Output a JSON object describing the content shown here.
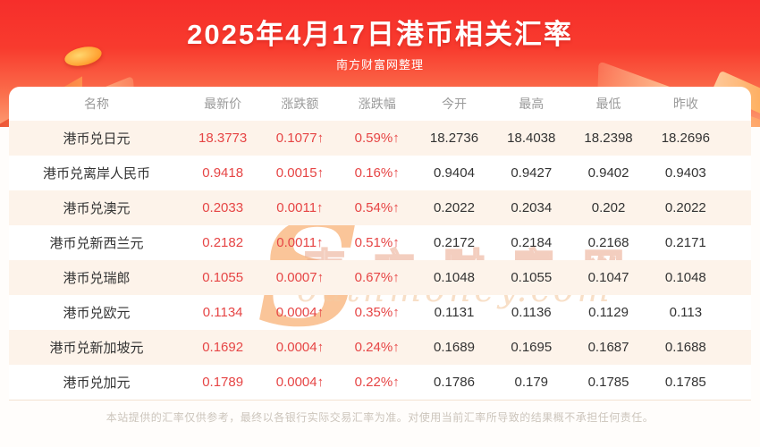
{
  "header": {
    "title": "2025年4月17日港币相关汇率",
    "subtitle": "南方财富网整理"
  },
  "watermark": {
    "initial": "S",
    "cn": "南方财富网",
    "en": "outhmoney.com"
  },
  "table": {
    "type": "table",
    "columns": [
      "名称",
      "最新价",
      "涨跌额",
      "涨跌幅",
      "今开",
      "最高",
      "最低",
      "昨收"
    ],
    "rows": [
      {
        "name": "港币兑日元",
        "latest": "18.3773",
        "change": "0.1077↑",
        "change_pct": "0.59%↑",
        "open": "18.2736",
        "high": "18.4038",
        "low": "18.2398",
        "prev_close": "18.2696"
      },
      {
        "name": "港币兑离岸人民币",
        "latest": "0.9418",
        "change": "0.0015↑",
        "change_pct": "0.16%↑",
        "open": "0.9404",
        "high": "0.9427",
        "low": "0.9402",
        "prev_close": "0.9403"
      },
      {
        "name": "港币兑澳元",
        "latest": "0.2033",
        "change": "0.0011↑",
        "change_pct": "0.54%↑",
        "open": "0.2022",
        "high": "0.2034",
        "low": "0.202",
        "prev_close": "0.2022"
      },
      {
        "name": "港币兑新西兰元",
        "latest": "0.2182",
        "change": "0.0011↑",
        "change_pct": "0.51%↑",
        "open": "0.2172",
        "high": "0.2184",
        "low": "0.2168",
        "prev_close": "0.2171"
      },
      {
        "name": "港币兑瑞郎",
        "latest": "0.1055",
        "change": "0.0007↑",
        "change_pct": "0.67%↑",
        "open": "0.1048",
        "high": "0.1055",
        "low": "0.1047",
        "prev_close": "0.1048"
      },
      {
        "name": "港币兑欧元",
        "latest": "0.1134",
        "change": "0.0004↑",
        "change_pct": "0.35%↑",
        "open": "0.1131",
        "high": "0.1136",
        "low": "0.1129",
        "prev_close": "0.113"
      },
      {
        "name": "港币兑新加坡元",
        "latest": "0.1692",
        "change": "0.0004↑",
        "change_pct": "0.24%↑",
        "open": "0.1689",
        "high": "0.1695",
        "low": "0.1687",
        "prev_close": "0.1688"
      },
      {
        "name": "港币兑加元",
        "latest": "0.1789",
        "change": "0.0004↑",
        "change_pct": "0.22%↑",
        "open": "0.1786",
        "high": "0.179",
        "low": "0.1785",
        "prev_close": "0.1785"
      }
    ]
  },
  "footer": {
    "disclaimer": "本站提供的汇率仅供参考，最终以各银行实际交易汇率为准。对使用当前汇率所导致的结果概不承担任何责任。"
  },
  "colors": {
    "banner_red_top": "#f62e2b",
    "banner_red_bottom": "#fd9b72",
    "value_red": "#e64545",
    "row_stripe": "#fdf3ea",
    "header_gray": "#9a9a9a",
    "text_dark": "#333333"
  }
}
